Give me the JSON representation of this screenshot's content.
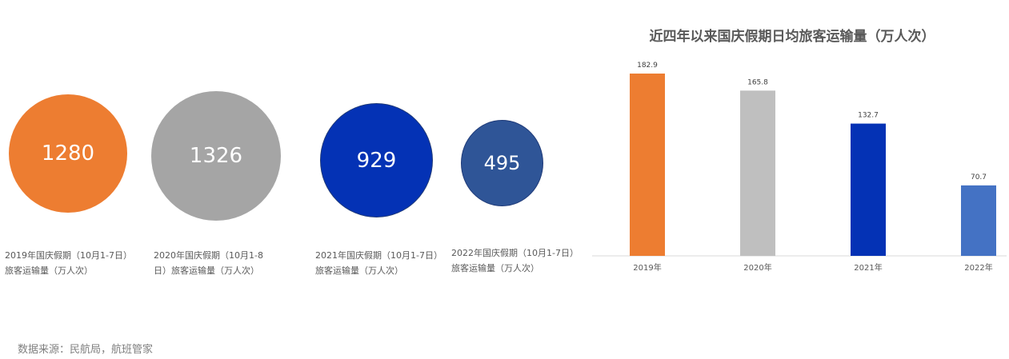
{
  "bubbles": [
    {
      "value": "1280",
      "color": "#ED7D31",
      "caption_line1": "2019年国庆假期（10月1-7日）",
      "caption_line2": "旅客运输量（万人次）"
    },
    {
      "value": "1326",
      "color": "#A5A5A5",
      "caption_line1": "2020年国庆假期（10月1-8",
      "caption_line2": "日）旅客运输量（万人次）"
    },
    {
      "value": "929",
      "color": "#0432B5",
      "caption_line1": "2021年国庆假期（10月1-7日）",
      "caption_line2": "旅客运输量（万人次）"
    },
    {
      "value": "495",
      "color": "#2F5597",
      "caption_line1": "2022年国庆假期（10月1-7日）",
      "caption_line2": "旅客运输量（万人次）"
    }
  ],
  "chart_data": {
    "type": "bar",
    "title": "近四年以来国庆假期日均旅客运输量（万人次）",
    "categories": [
      "2019年",
      "2020年",
      "2021年",
      "2022年"
    ],
    "values": [
      182.9,
      165.8,
      132.7,
      70.7
    ],
    "value_labels": [
      "182.9",
      "165.8",
      "132.7",
      "70.7"
    ],
    "colors": [
      "#ED7D31",
      "#BFBFBF",
      "#0432B5",
      "#4472C4"
    ],
    "ylim": [
      0,
      200
    ],
    "grid": false,
    "legend": "none",
    "xlabel": "",
    "ylabel": ""
  },
  "source": "数据来源：民航局，航班管家"
}
